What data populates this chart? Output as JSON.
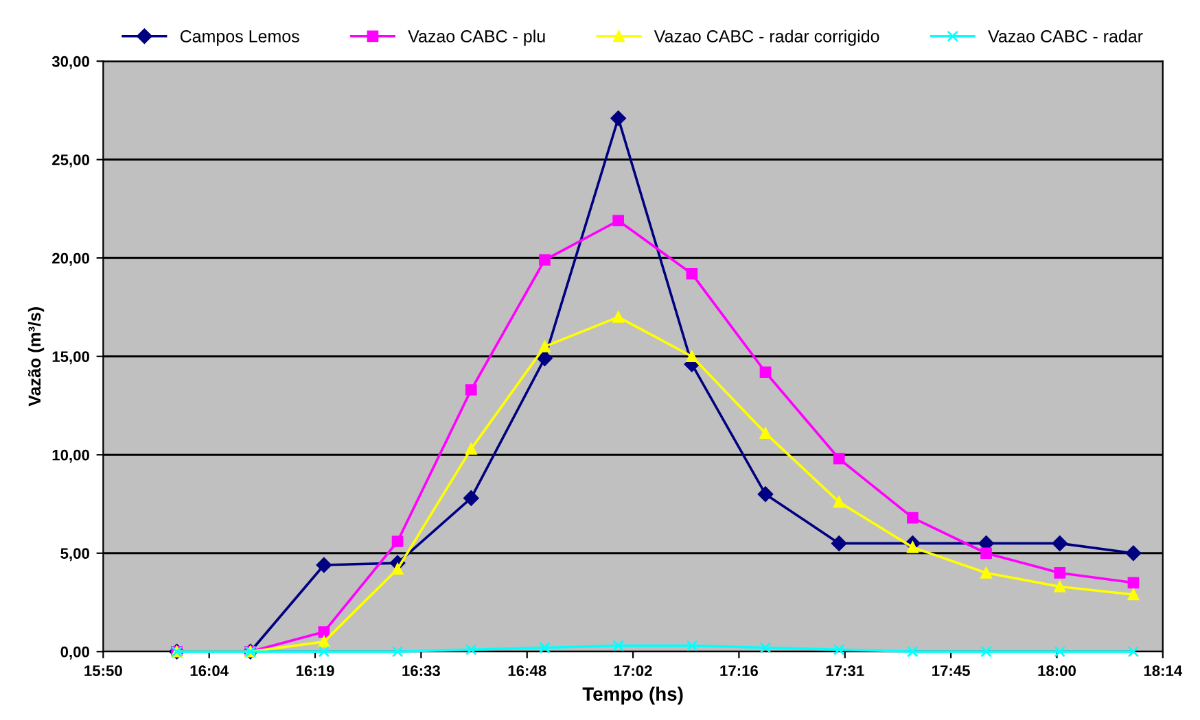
{
  "chart_data": {
    "type": "line",
    "xlabel": "Tempo (hs)",
    "ylabel": "Vazão (m³/s)",
    "x": [
      16.0,
      16.1667,
      16.3333,
      16.5,
      16.6667,
      16.8333,
      17.0,
      17.1667,
      17.3333,
      17.5,
      17.6667,
      17.8333,
      18.0,
      18.1667
    ],
    "series": [
      {
        "name": "Campos Lemos",
        "color": "#000080",
        "marker": "diamond",
        "values": [
          0,
          0,
          4.4,
          4.5,
          7.8,
          14.9,
          27.1,
          14.6,
          8.0,
          5.5,
          5.5,
          5.5,
          5.5,
          5.0
        ]
      },
      {
        "name": "Vazao CABC - plu",
        "color": "#ff00ff",
        "marker": "square",
        "values": [
          0,
          0,
          1.0,
          5.6,
          13.3,
          19.9,
          21.9,
          19.2,
          14.2,
          9.8,
          6.8,
          5.0,
          4.0,
          3.5
        ]
      },
      {
        "name": "Vazao CABC - radar corrigido",
        "color": "#ffff00",
        "marker": "triangle",
        "values": [
          0,
          0,
          0.5,
          4.2,
          10.3,
          15.5,
          17.0,
          15.0,
          11.1,
          7.6,
          5.3,
          4.0,
          3.3,
          2.9
        ]
      },
      {
        "name": "Vazao CABC - radar",
        "color": "#00ffff",
        "marker": "cross",
        "values": [
          0,
          0,
          0,
          0,
          0.1,
          0.2,
          0.3,
          0.3,
          0.2,
          0.1,
          0,
          0,
          0,
          0
        ]
      }
    ],
    "xlim": [
      15.8333,
      18.2333
    ],
    "xticks": [
      {
        "value": 15.8333,
        "label": "15:50"
      },
      {
        "value": 16.0733,
        "label": "16:04"
      },
      {
        "value": 16.3133,
        "label": "16:19"
      },
      {
        "value": 16.5533,
        "label": "16:33"
      },
      {
        "value": 16.7933,
        "label": "16:48"
      },
      {
        "value": 17.0333,
        "label": "17:02"
      },
      {
        "value": 17.2733,
        "label": "17:16"
      },
      {
        "value": 17.5133,
        "label": "17:31"
      },
      {
        "value": 17.7533,
        "label": "17:45"
      },
      {
        "value": 17.9933,
        "label": "18:00"
      },
      {
        "value": 18.2333,
        "label": "18:14"
      }
    ],
    "ylim": [
      0,
      30
    ],
    "yticks": [
      {
        "value": 0,
        "label": "0,00"
      },
      {
        "value": 5,
        "label": "5,00"
      },
      {
        "value": 10,
        "label": "10,00"
      },
      {
        "value": 15,
        "label": "15,00"
      },
      {
        "value": 20,
        "label": "20,00"
      },
      {
        "value": 25,
        "label": "25,00"
      },
      {
        "value": 30,
        "label": "30,00"
      }
    ],
    "grid": "y",
    "legend": "top",
    "line_style": "solid"
  }
}
